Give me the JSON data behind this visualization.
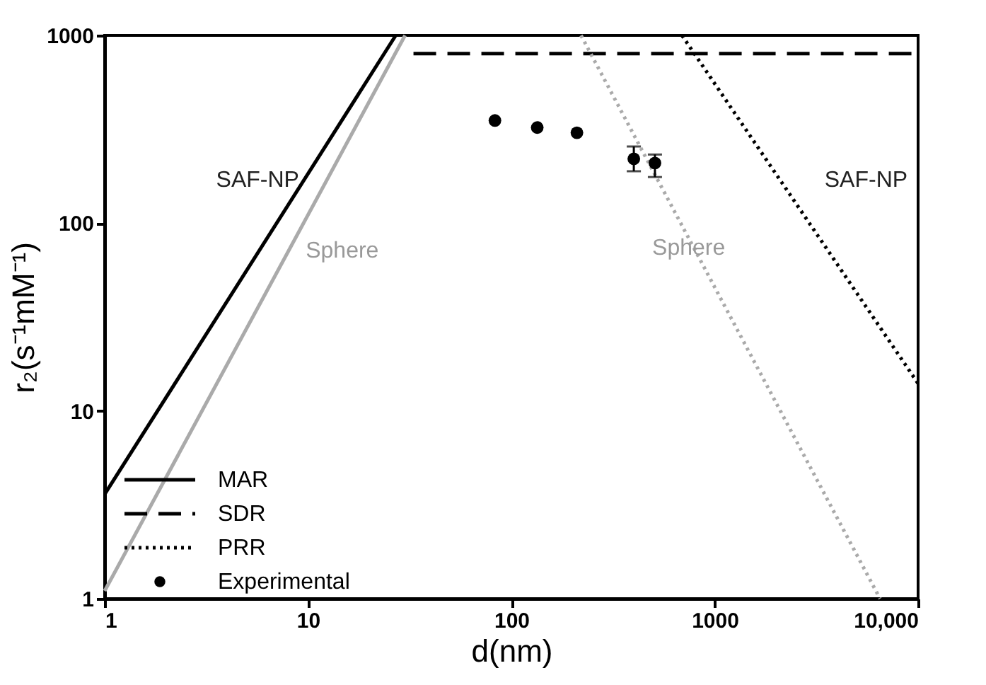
{
  "chart_data": {
    "type": "line",
    "xlabel": "d(nm)",
    "ylabel": "r₂(s⁻¹mM⁻¹)",
    "log": "xy",
    "grid": false,
    "legend": "bottom left",
    "xlim": [
      1,
      10000
    ],
    "xticks": [
      1,
      10,
      100,
      1000,
      {
        "value": 10000,
        "label": "10,000"
      }
    ],
    "ylim": [
      1,
      1000
    ],
    "yticks": [
      1,
      10,
      100,
      1000
    ],
    "series": [
      {
        "name": "MAR",
        "color": "#000000",
        "line_style": "solid",
        "x": [
          1,
          27
        ],
        "values": [
          3.6,
          1000
        ]
      },
      {
        "color": "#aaaaaa",
        "line_style": "solid",
        "x": [
          1,
          30
        ],
        "values": [
          1.1,
          1000
        ]
      },
      {
        "name": "SDR",
        "color": "#000000",
        "line_style": "dashed",
        "x": [
          33,
          10000
        ],
        "values": [
          800,
          800
        ]
      },
      {
        "name": "PRR",
        "color": "#000000",
        "line_style": "dotted",
        "x": [
          690,
          10000
        ],
        "values": [
          1000,
          14
        ]
      },
      {
        "color": "#aaaaaa",
        "line_style": "dotted",
        "x": [
          220,
          6500
        ],
        "values": [
          1000,
          1
        ]
      },
      {
        "name": "Experimental",
        "type": "scatter",
        "marker": "circle",
        "color": "#000000",
        "x": [
          83,
          134,
          210,
          400,
          508
        ],
        "values": [
          352,
          323,
          303,
          220,
          209
        ],
        "errors": [
          null,
          null,
          null,
          [
            189,
            256
          ],
          [
            176,
            232
          ]
        ]
      }
    ],
    "annotations": [
      "SAF-NP",
      "Sphere",
      "Sphere",
      "SAF-NP"
    ]
  }
}
